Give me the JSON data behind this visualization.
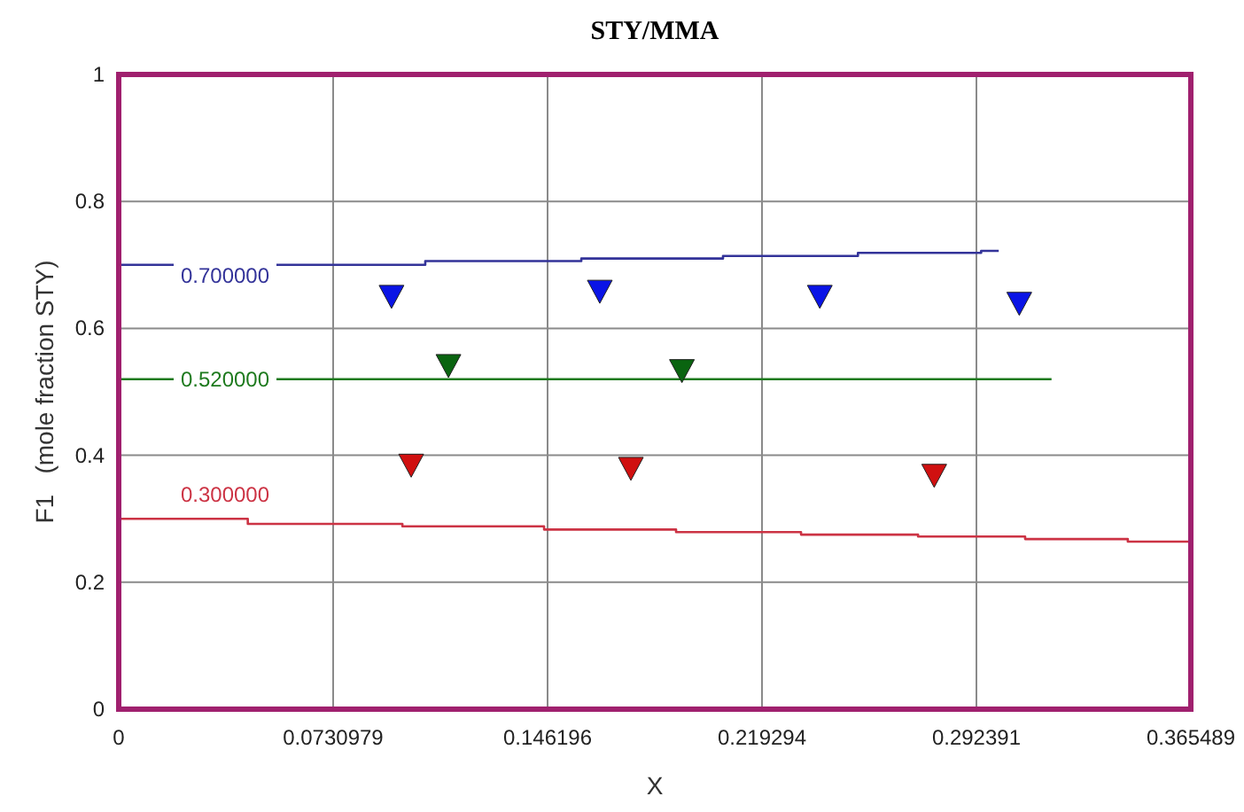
{
  "chart_data": {
    "type": "step",
    "title": "STY/MMA",
    "xlabel": "X",
    "ylabel": "F1   (mole fraction STY)",
    "xlim": [
      0,
      0.365489
    ],
    "xticks": [
      0,
      0.0730979,
      0.146196,
      0.219294,
      0.292391,
      0.365489
    ],
    "ylim": [
      0,
      1
    ],
    "yticks": [
      0,
      0.2,
      0.4,
      0.6,
      0.8,
      1
    ],
    "grid": true,
    "series": [
      {
        "color": "#333399",
        "x": [
          0,
          0.1045,
          0.1577,
          0.206,
          0.252,
          0.294,
          0.3
        ],
        "values": [
          0.7,
          0.706,
          0.71,
          0.714,
          0.719,
          0.722,
          0.722
        ]
      },
      {
        "color": "#1e7a1e",
        "x": [
          0,
          0.318
        ],
        "values": [
          0.52,
          0.52
        ]
      },
      {
        "color": "#cc3344",
        "x": [
          0,
          0.044,
          0.0967,
          0.145,
          0.19,
          0.2326,
          0.2725,
          0.309,
          0.344,
          0.365489
        ],
        "values": [
          0.3,
          0.292,
          0.288,
          0.283,
          0.279,
          0.275,
          0.272,
          0.268,
          0.264,
          0.264
        ]
      },
      {
        "type": "scatter",
        "color": "#0a14e6",
        "marker": "triangle",
        "x": [
          0.093,
          0.164,
          0.239,
          0.307
        ],
        "values": [
          0.651,
          0.659,
          0.651,
          0.64
        ]
      },
      {
        "type": "scatter",
        "color": "#0a6410",
        "marker": "triangle",
        "x": [
          0.1124,
          0.192
        ],
        "values": [
          0.542,
          0.534
        ]
      },
      {
        "type": "scatter",
        "color": "#d01010",
        "marker": "triangle",
        "x": [
          0.0997,
          0.1746,
          0.278
        ],
        "values": [
          0.385,
          0.38,
          0.369
        ]
      }
    ],
    "annotations": [
      "0.700000",
      "0.520000",
      "0.300000"
    ]
  }
}
